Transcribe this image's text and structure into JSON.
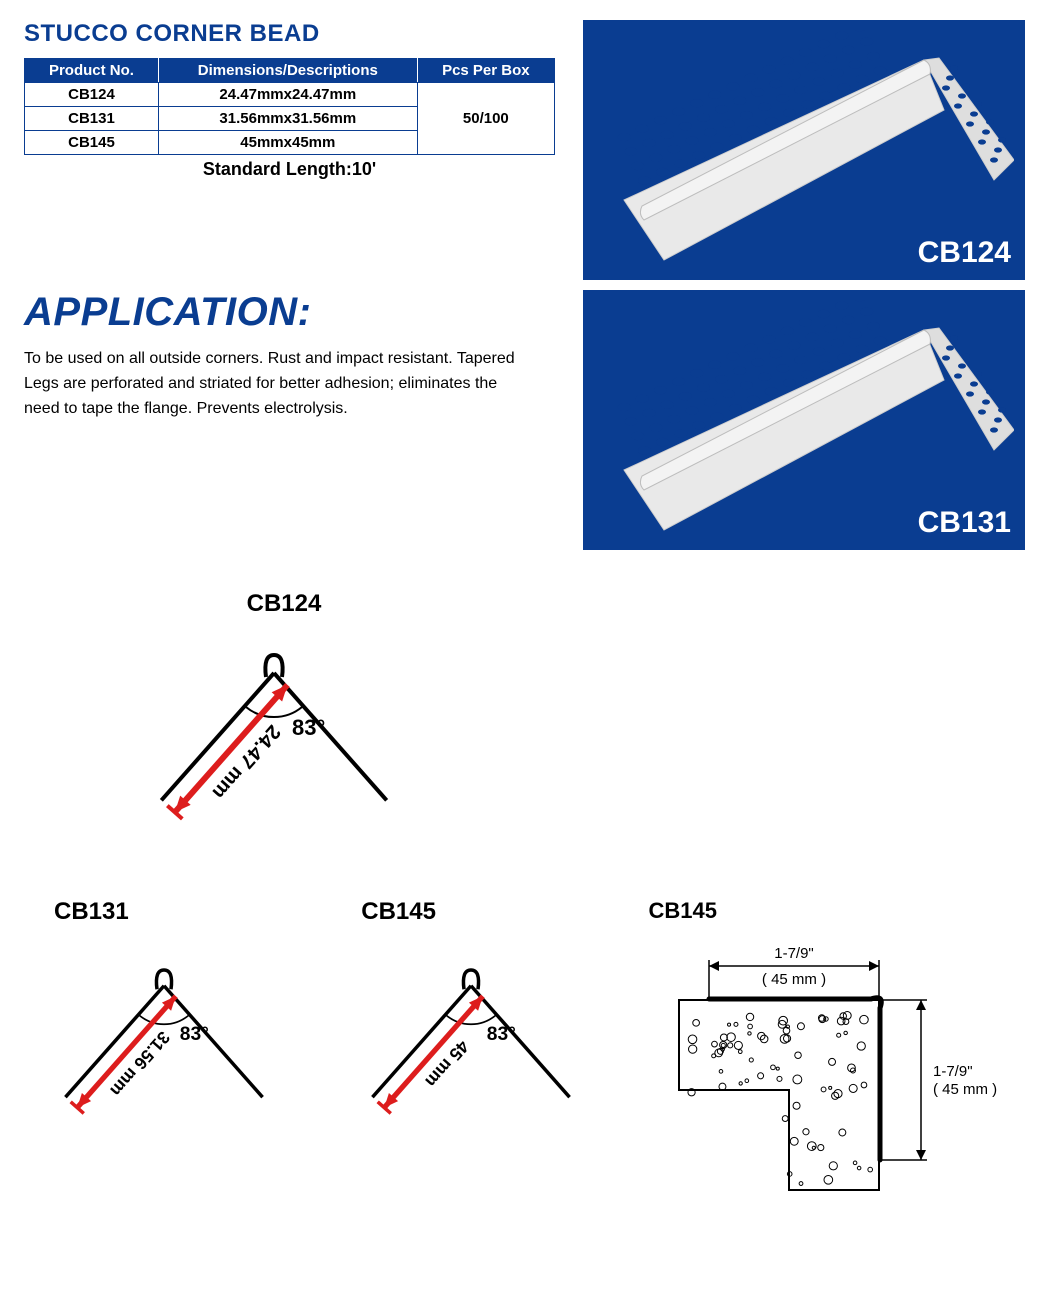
{
  "title": "STUCCO CORNER BEAD",
  "title_color": "#0a3d91",
  "table": {
    "header_bg": "#0a3d91",
    "header_fg": "#ffffff",
    "border_color": "#0a3d91",
    "columns": [
      "Product No.",
      "Dimensions/Descriptions",
      "Pcs Per Box"
    ],
    "rows": [
      {
        "no": "CB124",
        "dim": "24.47mmx24.47mm"
      },
      {
        "no": "CB131",
        "dim": "31.56mmx31.56mm"
      },
      {
        "no": "CB145",
        "dim": "45mmx45mm"
      }
    ],
    "pcs": "50/100",
    "standard_length": "Standard Length:10'"
  },
  "application": {
    "heading": "APPLICATION:",
    "heading_color": "#0a3d91",
    "text": "To be used on all outside corners. Rust and impact resistant. Tapered Legs are perforated and striated for better adhesion; eliminates the need to tape the flange. Prevents electrolysis."
  },
  "photos": [
    {
      "label": "CB124",
      "bg": "#0a3d91",
      "bead_color": "#e9e9e9",
      "hole_color": "#0a3d91"
    },
    {
      "label": "CB131",
      "bg": "#0a3d91",
      "bead_color": "#e9e9e9",
      "hole_color": "#0a3d91"
    }
  ],
  "diagrams": {
    "arrow_color": "#dd1d1d",
    "line_color": "#000000",
    "angle_text": "83°",
    "items": [
      {
        "title": "CB124",
        "length_label": "24.47 mm"
      },
      {
        "title": "CB131",
        "length_label": "31.56 mm"
      },
      {
        "title": "CB145",
        "length_label": "45 mm"
      }
    ],
    "section": {
      "title": "CB145",
      "dim_h": "1-7/9\"",
      "dim_h_mm": "( 45 mm )",
      "dim_v": "1-7/9\"",
      "dim_v_mm": "( 45 mm )"
    }
  }
}
